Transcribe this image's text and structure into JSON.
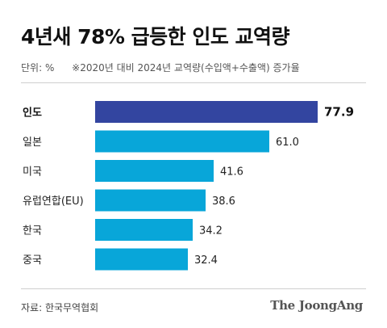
{
  "title": "4년새 78% 급등한 인도 교역량",
  "unit_label": "단위: %",
  "note": "※2020년 대비 2024년 교역량(수입액+수출액) 증가율",
  "source": "자료: 한국무역협회",
  "brand": "The JoongAng",
  "colors": {
    "highlight": "#3345A0",
    "bar": "#08A6D9",
    "label": "#222222",
    "highlight_label": "#111111"
  },
  "chart_data": {
    "type": "bar",
    "orientation": "horizontal",
    "title": "4년새 78% 급등한 인도 교역량",
    "xlabel": "",
    "ylabel": "",
    "unit": "%",
    "xlim": [
      0,
      77.9
    ],
    "grid": false,
    "categories": [
      "인도",
      "일본",
      "미국",
      "유럽연합(EU)",
      "한국",
      "중국"
    ],
    "values": [
      77.9,
      61.0,
      41.6,
      38.6,
      34.2,
      32.4
    ],
    "value_labels": [
      "77.9",
      "61.0",
      "41.6",
      "38.6",
      "34.2",
      "32.4"
    ],
    "highlight": "인도"
  }
}
